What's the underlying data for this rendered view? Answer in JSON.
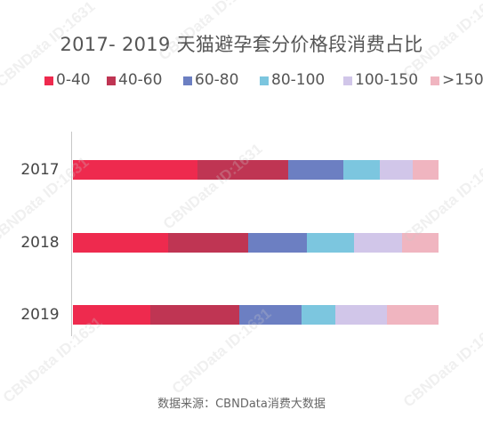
{
  "chart_data": {
    "type": "bar",
    "orientation": "horizontal",
    "stacked": true,
    "title": "2017- 2019 天猫避孕套分价格段消费占比",
    "categories": [
      "2017",
      "2018",
      "2019"
    ],
    "series": [
      {
        "name": "0-40",
        "color": "#ee2a4e",
        "values": [
          0.34,
          0.26,
          0.21
        ]
      },
      {
        "name": "40-60",
        "color": "#bf3553",
        "values": [
          0.25,
          0.22,
          0.24
        ]
      },
      {
        "name": "60-80",
        "color": "#6c7fc2",
        "values": [
          0.15,
          0.16,
          0.17
        ]
      },
      {
        "name": "80-100",
        "color": "#7cc6df",
        "values": [
          0.1,
          0.13,
          0.09
        ]
      },
      {
        "name": "100-150",
        "color": "#d1c6e9",
        "values": [
          0.09,
          0.13,
          0.14
        ]
      },
      {
        "name": ">150",
        "color": "#f0b5c0",
        "values": [
          0.07,
          0.1,
          0.14
        ]
      }
    ],
    "legend": "top",
    "grid": false,
    "xlim": [
      0,
      1
    ]
  },
  "source": "数据来源：CBNData消费大数据",
  "watermark": "CBNData ID:1631"
}
